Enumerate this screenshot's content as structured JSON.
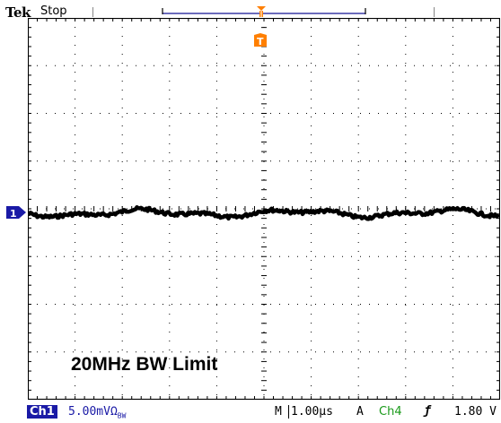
{
  "header": {
    "brand": "Tek",
    "acquisition_state": "Stop"
  },
  "markers": {
    "channel_marker": "1",
    "trigger_marker": "T"
  },
  "annotation": {
    "label": "20MHz BW Limit"
  },
  "footer": {
    "channel_badge": "Ch1",
    "channel_scale": "5.00mV",
    "channel_coupling": "Ω",
    "bandwidth_mark": "BW",
    "timebase_prefix": "M",
    "timebase_value": "1.00µs",
    "trigger_mode": "A",
    "trigger_source": "Ch4",
    "trigger_slope": "ƒ",
    "trigger_level": "1.80 V"
  },
  "colors": {
    "trace": "#000000",
    "channel": "#1a1aa6",
    "trigger_marker": "#ff7f00",
    "trigger_source": "#1a9a1a",
    "graticule": "#000000"
  },
  "icons": {
    "channel_marker": "channel-1-ground-marker-icon",
    "trigger_position": "trigger-position-icon",
    "trigger_slope": "rising-edge-icon"
  }
}
